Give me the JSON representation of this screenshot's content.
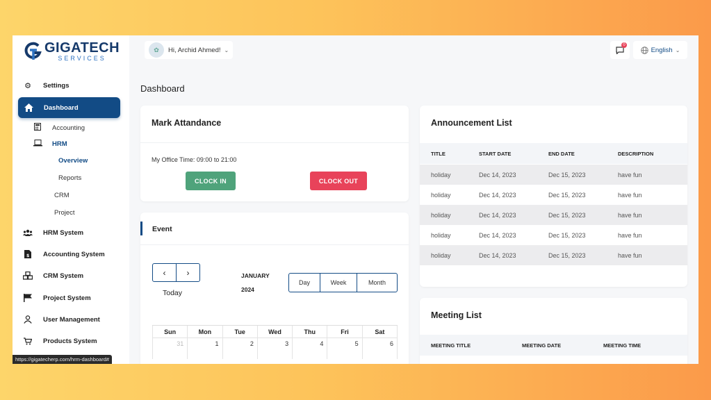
{
  "brand": {
    "name": "GIGATECH",
    "sub": "SERVICES"
  },
  "sidebar": {
    "settings": "Settings",
    "dashboard": "Dashboard",
    "accounting": "Accounting",
    "hrm": "HRM",
    "overview": "Overview",
    "reports": "Reports",
    "crm": "CRM",
    "project": "Project",
    "items": [
      {
        "label": "HRM System",
        "icon": "users-icon"
      },
      {
        "label": "Accounting System",
        "icon": "invoice-icon"
      },
      {
        "label": "CRM System",
        "icon": "cubes-icon"
      },
      {
        "label": "Project System",
        "icon": "flag-icon"
      },
      {
        "label": "User Management",
        "icon": "user-icon"
      },
      {
        "label": "Products System",
        "icon": "cart-icon"
      }
    ]
  },
  "header": {
    "greeting": "Hi, Archid Ahmed!",
    "notification_count": "0",
    "language": "English"
  },
  "page_title": "Dashboard",
  "attendance": {
    "title": "Mark Attandance",
    "office_time": "My Office Time: 09:00 to 21:00",
    "clock_in": "CLOCK IN",
    "clock_out": "CLOCK OUT"
  },
  "event": {
    "title": "Event",
    "today": "Today",
    "month": "JANUARY",
    "year": "2024",
    "views": [
      "Day",
      "Week",
      "Month"
    ],
    "weekdays": [
      "Sun",
      "Mon",
      "Tue",
      "Wed",
      "Thu",
      "Fri",
      "Sat"
    ],
    "first_week": [
      "31",
      "1",
      "2",
      "3",
      "4",
      "5",
      "6"
    ]
  },
  "announcements": {
    "title": "Announcement List",
    "columns": [
      "TITLE",
      "START DATE",
      "END DATE",
      "DESCRIPTION"
    ],
    "rows": [
      [
        "holiday",
        "Dec 14, 2023",
        "Dec 15, 2023",
        "have fun"
      ],
      [
        "holiday",
        "Dec 14, 2023",
        "Dec 15, 2023",
        "have fun"
      ],
      [
        "holiday",
        "Dec 14, 2023",
        "Dec 15, 2023",
        "have fun"
      ],
      [
        "holiday",
        "Dec 14, 2023",
        "Dec 15, 2023",
        "have fun"
      ],
      [
        "holiday",
        "Dec 14, 2023",
        "Dec 15, 2023",
        "have fun"
      ]
    ]
  },
  "meetings": {
    "title": "Meeting List",
    "columns": [
      "MEETING TITLE",
      "MEETING DATE",
      "MEETING TIME"
    ]
  },
  "status_url": "https://gigatecherp.com/hrm-dashboard#",
  "colors": {
    "primary": "#124b85",
    "clock_in": "#4fa37b",
    "clock_out": "#e8435a"
  }
}
